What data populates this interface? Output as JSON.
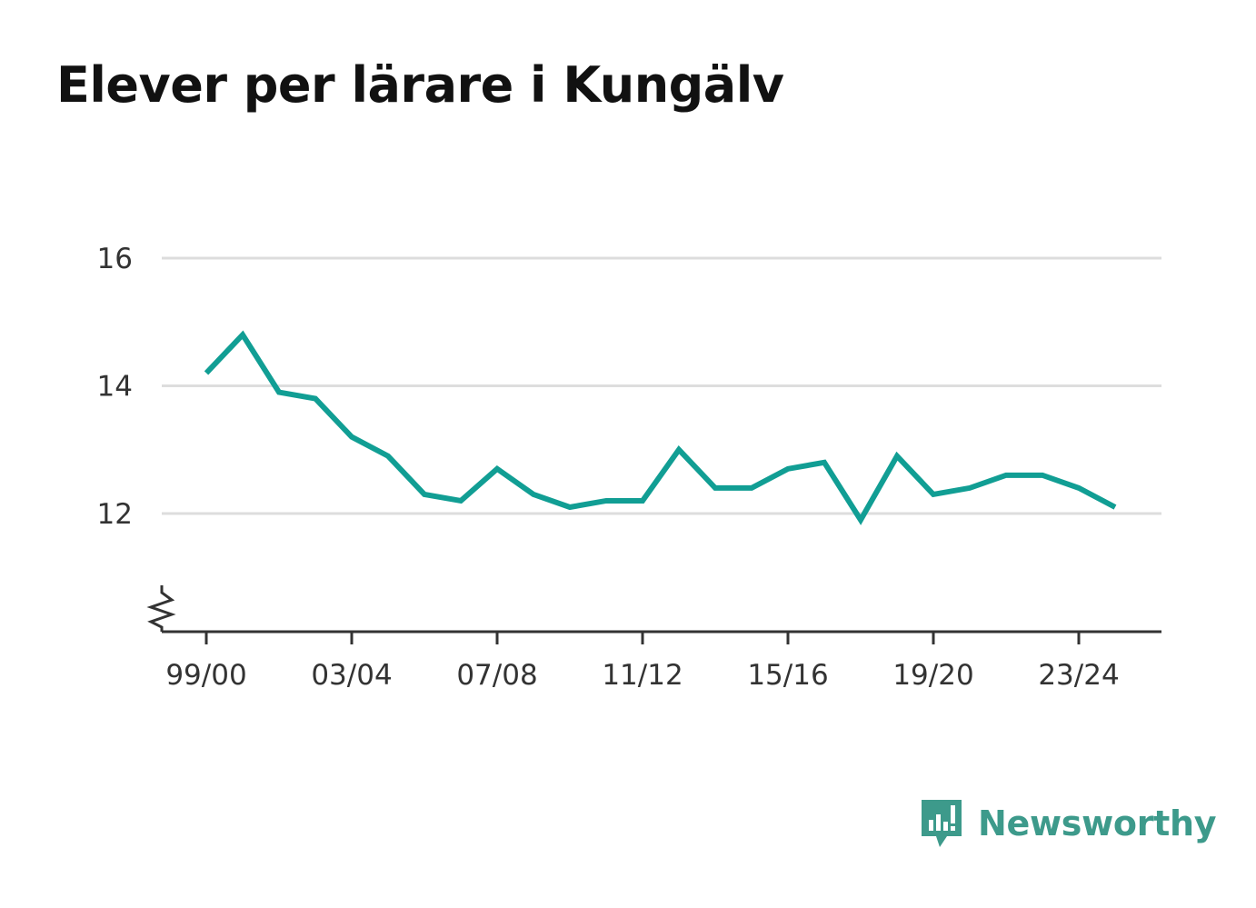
{
  "title": "Elever per lärare i Kungälv",
  "brand": {
    "name": "Newsworthy",
    "icon": "newsworthy-logo-icon",
    "color": "#3d9a8b"
  },
  "colors": {
    "line": "#119e94",
    "grid": "#dddddd",
    "axis": "#333333"
  },
  "chart_data": {
    "type": "line",
    "title": "Elever per lärare i Kungälv",
    "xlabel": "",
    "ylabel": "",
    "x": [
      "99/00",
      "00/01",
      "01/02",
      "02/03",
      "03/04",
      "04/05",
      "05/06",
      "06/07",
      "07/08",
      "08/09",
      "09/10",
      "10/11",
      "11/12",
      "12/13",
      "13/14",
      "14/15",
      "15/16",
      "16/17",
      "17/18",
      "18/19",
      "19/20",
      "20/21",
      "21/22",
      "22/23",
      "23/24",
      "24/25"
    ],
    "x_ticks": [
      "99/00",
      "03/04",
      "07/08",
      "11/12",
      "15/16",
      "19/20",
      "23/24"
    ],
    "series": [
      {
        "values": [
          14.2,
          14.8,
          13.9,
          13.8,
          13.2,
          12.9,
          12.3,
          12.2,
          12.7,
          12.3,
          12.1,
          12.2,
          12.2,
          13.0,
          12.4,
          12.4,
          12.7,
          12.8,
          11.9,
          12.9,
          12.3,
          12.4,
          12.6,
          12.6,
          12.4,
          12.1
        ]
      }
    ],
    "y_ticks": [
      12,
      14,
      16
    ],
    "ylim": [
      10.2,
      16
    ],
    "y_axis_break": true,
    "grid": true,
    "legend": "none"
  }
}
